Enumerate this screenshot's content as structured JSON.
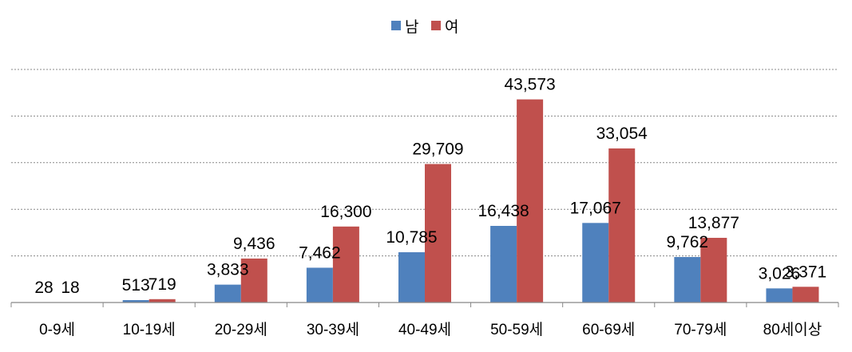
{
  "chart_data": {
    "type": "bar",
    "categories": [
      "0-9세",
      "10-19세",
      "20-29세",
      "30-39세",
      "40-49세",
      "50-59세",
      "60-69세",
      "70-79세",
      "80세이상"
    ],
    "series": [
      {
        "name": "남",
        "color": "#4f81bd",
        "values": [
          28,
          513,
          3833,
          7462,
          10785,
          16438,
          17067,
          9762,
          3026
        ],
        "labels": [
          "28",
          "513",
          "3,833",
          "7,462",
          "10,785",
          "16,438",
          "17,067",
          "9,762",
          "3,026"
        ]
      },
      {
        "name": "여",
        "color": "#c0504d",
        "values": [
          18,
          719,
          9436,
          16300,
          29709,
          43573,
          33054,
          13877,
          3371
        ],
        "labels": [
          "18",
          "719",
          "9,436",
          "16,300",
          "29,709",
          "43,573",
          "33,054",
          "13,877",
          "3,371"
        ]
      }
    ],
    "ylim": [
      0,
      50000
    ],
    "grid": true,
    "legend_position": "top-center"
  }
}
